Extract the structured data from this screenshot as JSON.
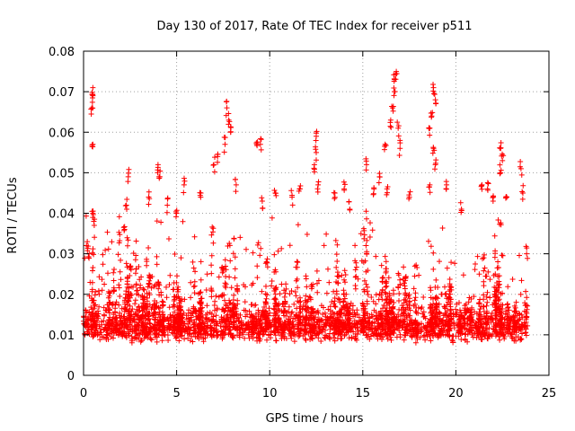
{
  "chart_data": {
    "type": "scatter",
    "title": "Day 130 of 2017, Rate Of TEC Index for receiver p511",
    "xlabel": "GPS time / hours",
    "ylabel": "ROTI / TECUs",
    "xlim": [
      0,
      25
    ],
    "ylim": [
      0,
      0.08
    ],
    "x_ticks": [
      0,
      5,
      10,
      15,
      20,
      25
    ],
    "x_tick_labels": [
      "0",
      "5",
      "10",
      "15",
      "20",
      "25"
    ],
    "y_ticks": [
      0,
      0.01,
      0.02,
      0.03,
      0.04,
      0.05,
      0.06,
      0.07,
      0.08
    ],
    "y_tick_labels": [
      "0",
      "0.01",
      "0.02",
      "0.03",
      "0.04",
      "0.05",
      "0.06",
      "0.07",
      "0.08"
    ],
    "grid": true,
    "marker": "+",
    "color": "#ff0000",
    "series": [
      {
        "name": "ROTI",
        "points": [
          [
            0.5,
            0.071
          ],
          [
            0.5,
            0.069
          ],
          [
            0.45,
            0.066
          ],
          [
            0.5,
            0.057
          ],
          [
            0.5,
            0.04
          ],
          [
            0.55,
            0.038
          ],
          [
            0.2,
            0.033
          ],
          [
            0.3,
            0.03
          ],
          [
            2.4,
            0.049
          ],
          [
            2.3,
            0.042
          ],
          [
            2.2,
            0.036
          ],
          [
            4.0,
            0.052
          ],
          [
            4.1,
            0.049
          ],
          [
            3.5,
            0.044
          ],
          [
            4.5,
            0.042
          ],
          [
            5.0,
            0.04
          ],
          [
            5.4,
            0.047
          ],
          [
            6.3,
            0.045
          ],
          [
            7.7,
            0.066
          ],
          [
            7.8,
            0.063
          ],
          [
            7.9,
            0.06
          ],
          [
            7.6,
            0.057
          ],
          [
            7.2,
            0.054
          ],
          [
            7.0,
            0.052
          ],
          [
            8.2,
            0.047
          ],
          [
            9.3,
            0.057
          ],
          [
            9.5,
            0.057
          ],
          [
            9.6,
            0.043
          ],
          [
            10.3,
            0.045
          ],
          [
            11.2,
            0.044
          ],
          [
            11.6,
            0.046
          ],
          [
            12.5,
            0.059
          ],
          [
            12.5,
            0.055
          ],
          [
            12.4,
            0.052
          ],
          [
            12.6,
            0.047
          ],
          [
            13.5,
            0.045
          ],
          [
            14.0,
            0.046
          ],
          [
            14.3,
            0.041
          ],
          [
            15.2,
            0.052
          ],
          [
            15.6,
            0.046
          ],
          [
            15.9,
            0.049
          ],
          [
            16.2,
            0.057
          ],
          [
            16.5,
            0.063
          ],
          [
            16.6,
            0.066
          ],
          [
            16.7,
            0.07
          ],
          [
            16.8,
            0.075
          ],
          [
            16.7,
            0.073
          ],
          [
            16.9,
            0.061
          ],
          [
            17.0,
            0.056
          ],
          [
            16.3,
            0.046
          ],
          [
            17.5,
            0.044
          ],
          [
            18.6,
            0.061
          ],
          [
            18.7,
            0.064
          ],
          [
            18.8,
            0.071
          ],
          [
            18.9,
            0.068
          ],
          [
            18.8,
            0.056
          ],
          [
            18.9,
            0.052
          ],
          [
            18.6,
            0.047
          ],
          [
            19.5,
            0.047
          ],
          [
            20.3,
            0.041
          ],
          [
            21.4,
            0.047
          ],
          [
            21.7,
            0.046
          ],
          [
            22.0,
            0.043
          ],
          [
            22.4,
            0.056
          ],
          [
            22.5,
            0.053
          ],
          [
            22.4,
            0.05
          ],
          [
            22.7,
            0.044
          ],
          [
            23.5,
            0.051
          ],
          [
            23.6,
            0.045
          ],
          [
            23.8,
            0.03
          ]
        ]
      }
    ],
    "band_baseline": 0.01,
    "band_spread": 0.006
  }
}
